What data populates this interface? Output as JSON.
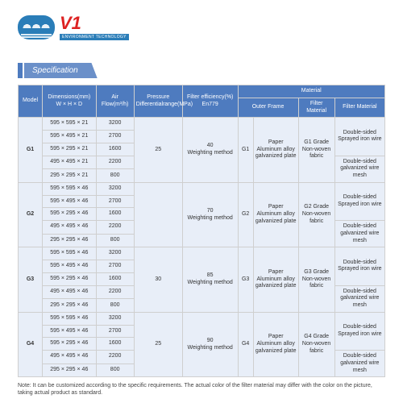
{
  "logo": {
    "brand": "V1",
    "sub": "ENVIRONMENT TECHNOLOGY"
  },
  "section_title": "Specification",
  "headers": {
    "model": "Model",
    "dimensions": "Dimensions(mm)\nW × H × D",
    "airflow": "Air Flow(m³/h)",
    "pressure": "Pressure\nDifferentialrange(MPa)",
    "efficiency": "Filter efficiency(%)\nEn779",
    "material": "Material",
    "outer_frame": "Outer Frame",
    "filter_material": "Filter Material",
    "filter_material2": "Filter Material"
  },
  "outer_frame_text": "Paper\nAluminum alloy\ngalvanized plate",
  "fmat_top": "Double-sided\nSprayed iron wire",
  "fmat_bot": "Double-sided\ngalvanized wire mesh",
  "groups": [
    {
      "model": "G1",
      "grade": "G1",
      "pressure": "25",
      "efficiency": "40\nWeighting method",
      "fm": "G1 Grade\nNon-woven\nfabric",
      "rows": [
        {
          "dim": "595 × 595 × 21",
          "air": "3200"
        },
        {
          "dim": "595 × 495 × 21",
          "air": "2700"
        },
        {
          "dim": "595 × 295 × 21",
          "air": "1600"
        },
        {
          "dim": "495 × 495 × 21",
          "air": "2200"
        },
        {
          "dim": "295 × 295 × 21",
          "air": "800"
        }
      ]
    },
    {
      "model": "G2",
      "grade": "G2",
      "pressure": "",
      "efficiency": "70\nWeighting method",
      "fm": "G2 Grade\nNon-woven\nfabric",
      "rows": [
        {
          "dim": "595 × 595 × 46",
          "air": "3200"
        },
        {
          "dim": "595 × 495 × 46",
          "air": "2700"
        },
        {
          "dim": "595 × 295 × 46",
          "air": "1600"
        },
        {
          "dim": "495 × 495 × 46",
          "air": "2200"
        },
        {
          "dim": "295 × 295 × 46",
          "air": "800"
        }
      ]
    },
    {
      "model": "G3",
      "grade": "G3",
      "pressure": "30",
      "efficiency": "85\nWeighting method",
      "fm": "G3 Grade\nNon-woven\nfabric",
      "rows": [
        {
          "dim": "595 × 595 × 46",
          "air": "3200"
        },
        {
          "dim": "595 × 495 × 46",
          "air": "2700"
        },
        {
          "dim": "595 × 295 × 46",
          "air": "1600"
        },
        {
          "dim": "495 × 495 × 46",
          "air": "2200"
        },
        {
          "dim": "295 × 295 × 46",
          "air": "800"
        }
      ]
    },
    {
      "model": "G4",
      "grade": "G4",
      "pressure": "25",
      "efficiency": "90\nWeighting method",
      "fm": "G4 Grade\nNon-woven\nfabric",
      "rows": [
        {
          "dim": "595 × 595 × 46",
          "air": "3200"
        },
        {
          "dim": "595 × 495 × 46",
          "air": "2700"
        },
        {
          "dim": "595 × 295 × 46",
          "air": "1600"
        },
        {
          "dim": "495 × 495 × 46",
          "air": "2200"
        },
        {
          "dim": "295 × 295 × 46",
          "air": "800"
        }
      ]
    }
  ],
  "note": "Note: It can be customized according to the specific requirements. The actual color of the filter material may differ with the color on the picture, taking actual product as standard.",
  "colors": {
    "header_bg": "#4e7bbf",
    "cell_bg": "#e8eef8",
    "border": "#cfcfcf",
    "accent": "#d22"
  }
}
